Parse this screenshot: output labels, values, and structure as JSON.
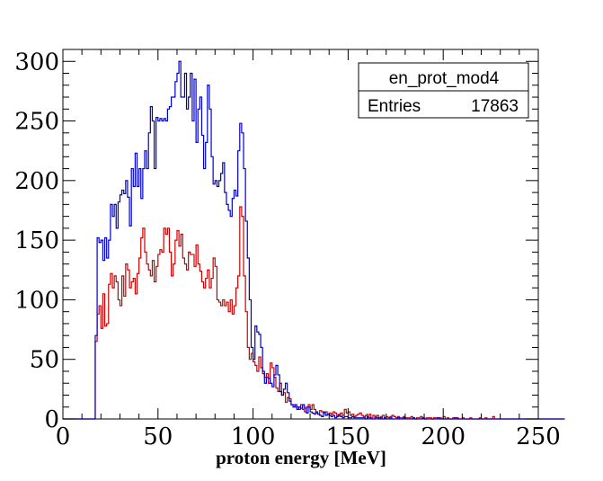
{
  "chart_data": {
    "type": "histogram",
    "xlabel": "proton energy [MeV]",
    "ylabel": "",
    "xlim": [
      0,
      250
    ],
    "ylim": [
      0,
      310
    ],
    "x_ticks": [
      0,
      50,
      100,
      150,
      200,
      250
    ],
    "y_ticks": [
      0,
      50,
      100,
      150,
      200,
      250,
      300
    ],
    "grid": false,
    "bin_width": 1,
    "stats_box": {
      "name": "en_prot_mod4",
      "entries_label": "Entries",
      "entries_value": "17863",
      "placement": "top-right"
    },
    "series": [
      {
        "name": "blue",
        "color": "#0000cc",
        "x_start": 0,
        "values": [
          0,
          0,
          0,
          0,
          0,
          0,
          0,
          0,
          0,
          0,
          0,
          0,
          0,
          0,
          0,
          0,
          0,
          70,
          152,
          148,
          150,
          133,
          152,
          135,
          150,
          180,
          170,
          180,
          160,
          182,
          188,
          192,
          189,
          200,
          186,
          162,
          210,
          195,
          223,
          195,
          210,
          185,
          210,
          225,
          210,
          240,
          262,
          250,
          210,
          253,
          250,
          252,
          250,
          252,
          250,
          260,
          262,
          270,
          270,
          283,
          290,
          300,
          270,
          270,
          290,
          260,
          270,
          290,
          250,
          285,
          232,
          260,
          270,
          238,
          210,
          232,
          280,
          260,
          220,
          197,
          200,
          195,
          200,
          206,
          215,
          190,
          180,
          175,
          170,
          185,
          192,
          187,
          225,
          248,
          240,
          210,
          166,
          135,
          100,
          60,
          50,
          78,
          73,
          71,
          60,
          40,
          30,
          35,
          34,
          30,
          27,
          37,
          45,
          37,
          23,
          20,
          25,
          30,
          22,
          15,
          12,
          10,
          12,
          8,
          10,
          9,
          12,
          9,
          5,
          10,
          6,
          5,
          4,
          6,
          4,
          3,
          2,
          6,
          3,
          4,
          3,
          2,
          3,
          1,
          2,
          3,
          2,
          1,
          2,
          2,
          1,
          1,
          2,
          1,
          1,
          1,
          1,
          1,
          1,
          0,
          1,
          1,
          0,
          0,
          1,
          1,
          0,
          1,
          0,
          1,
          0,
          0,
          1,
          0,
          0,
          0,
          1,
          0,
          0,
          1,
          0,
          0,
          0,
          0,
          1,
          0,
          0,
          0,
          0,
          1,
          0,
          0,
          0,
          0,
          0,
          0,
          0,
          1,
          0,
          0,
          0,
          0,
          0,
          0,
          0,
          0,
          1,
          0,
          0,
          0,
          0,
          0,
          0,
          0,
          0,
          0,
          0,
          0,
          0,
          0,
          0,
          0,
          0,
          0,
          0,
          0,
          0,
          0,
          0,
          0,
          0,
          0,
          0,
          0,
          0,
          0,
          0,
          0,
          0,
          0,
          0,
          0,
          0,
          0,
          0,
          0,
          0,
          0,
          0,
          0,
          0,
          0,
          0,
          0,
          0,
          0,
          0,
          0,
          0,
          0,
          0,
          0,
          0,
          0
        ]
      },
      {
        "name": "red",
        "color": "#cc0000",
        "x_start": 0,
        "values": [
          0,
          0,
          0,
          0,
          0,
          0,
          0,
          0,
          0,
          0,
          0,
          0,
          0,
          0,
          0,
          0,
          0,
          65,
          88,
          95,
          76,
          105,
          78,
          80,
          113,
          122,
          110,
          120,
          115,
          100,
          95,
          120,
          103,
          130,
          125,
          110,
          115,
          118,
          105,
          122,
          135,
          152,
          160,
          140,
          130,
          125,
          120,
          133,
          115,
          128,
          138,
          142,
          140,
          160,
          155,
          160,
          140,
          120,
          130,
          150,
          158,
          145,
          155,
          135,
          130,
          125,
          140,
          138,
          138,
          128,
          146,
          130,
          124,
          115,
          110,
          118,
          125,
          110,
          118,
          135,
          128,
          100,
          98,
          95,
          100,
          95,
          98,
          90,
          100,
          88,
          95,
          110,
          120,
          178,
          170,
          120,
          90,
          60,
          50,
          55,
          48,
          45,
          40,
          52,
          43,
          38,
          35,
          38,
          30,
          47,
          43,
          35,
          26,
          23,
          30,
          20,
          22,
          14,
          18,
          17,
          12,
          12,
          10,
          10,
          8,
          12,
          8,
          6,
          10,
          12,
          8,
          12,
          8,
          5,
          4,
          7,
          6,
          5,
          6,
          4,
          5,
          4,
          6,
          5,
          3,
          4,
          5,
          3,
          8,
          5,
          6,
          3,
          4,
          2,
          3,
          4,
          5,
          3,
          2,
          3,
          2,
          4,
          1,
          3,
          2,
          3,
          1,
          2,
          3,
          1,
          2,
          1,
          2,
          3,
          2,
          1,
          2,
          1,
          1,
          2,
          1,
          1,
          1,
          2,
          1,
          0,
          1,
          1,
          2,
          1,
          0,
          1,
          1,
          1,
          0,
          1,
          1,
          0,
          1,
          0,
          2,
          0,
          1,
          0,
          0,
          1,
          0,
          1,
          0,
          0,
          1,
          0,
          0,
          0,
          1,
          0,
          0,
          0,
          0,
          1,
          0,
          0,
          1,
          0,
          0,
          0,
          2,
          0,
          0,
          0,
          0,
          0,
          0,
          0,
          0,
          0,
          0,
          0,
          0,
          0,
          0,
          0,
          0,
          0,
          0,
          0,
          0,
          0,
          0,
          0,
          0,
          0,
          0,
          0,
          0,
          0,
          0,
          0,
          0,
          0,
          0,
          0,
          0
        ]
      }
    ]
  }
}
